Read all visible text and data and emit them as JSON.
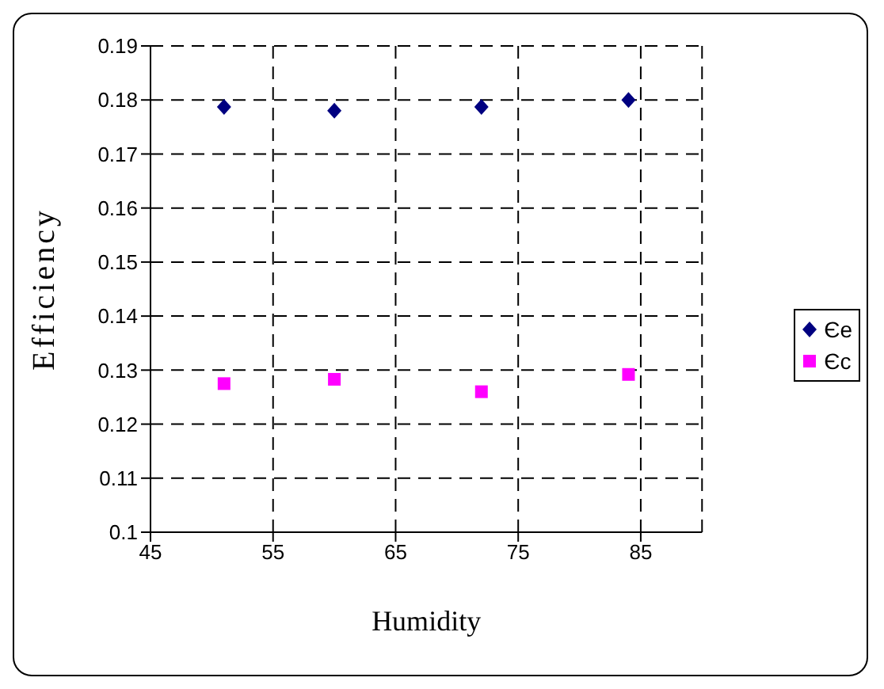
{
  "chart_data": {
    "type": "scatter",
    "xlabel": "Humidity",
    "ylabel": "Efficiency",
    "xlim": [
      45,
      90
    ],
    "xticks": [
      45,
      55,
      65,
      75,
      85
    ],
    "ylim": [
      0.1,
      0.19
    ],
    "yticks": [
      0.1,
      0.11,
      0.12,
      0.13,
      0.14,
      0.15,
      0.16,
      0.17,
      0.18,
      0.19
    ],
    "grid": true,
    "legend": "right",
    "series": [
      {
        "name": "Єe",
        "color": "#000080",
        "marker": "diamond",
        "x": [
          51,
          60,
          72,
          84
        ],
        "values": [
          0.1787,
          0.178,
          0.1787,
          0.18
        ]
      },
      {
        "name": "Єc",
        "color": "#ff00ff",
        "marker": "square",
        "x": [
          51,
          60,
          72,
          84
        ],
        "values": [
          0.1275,
          0.1283,
          0.126,
          0.1292
        ]
      }
    ]
  }
}
